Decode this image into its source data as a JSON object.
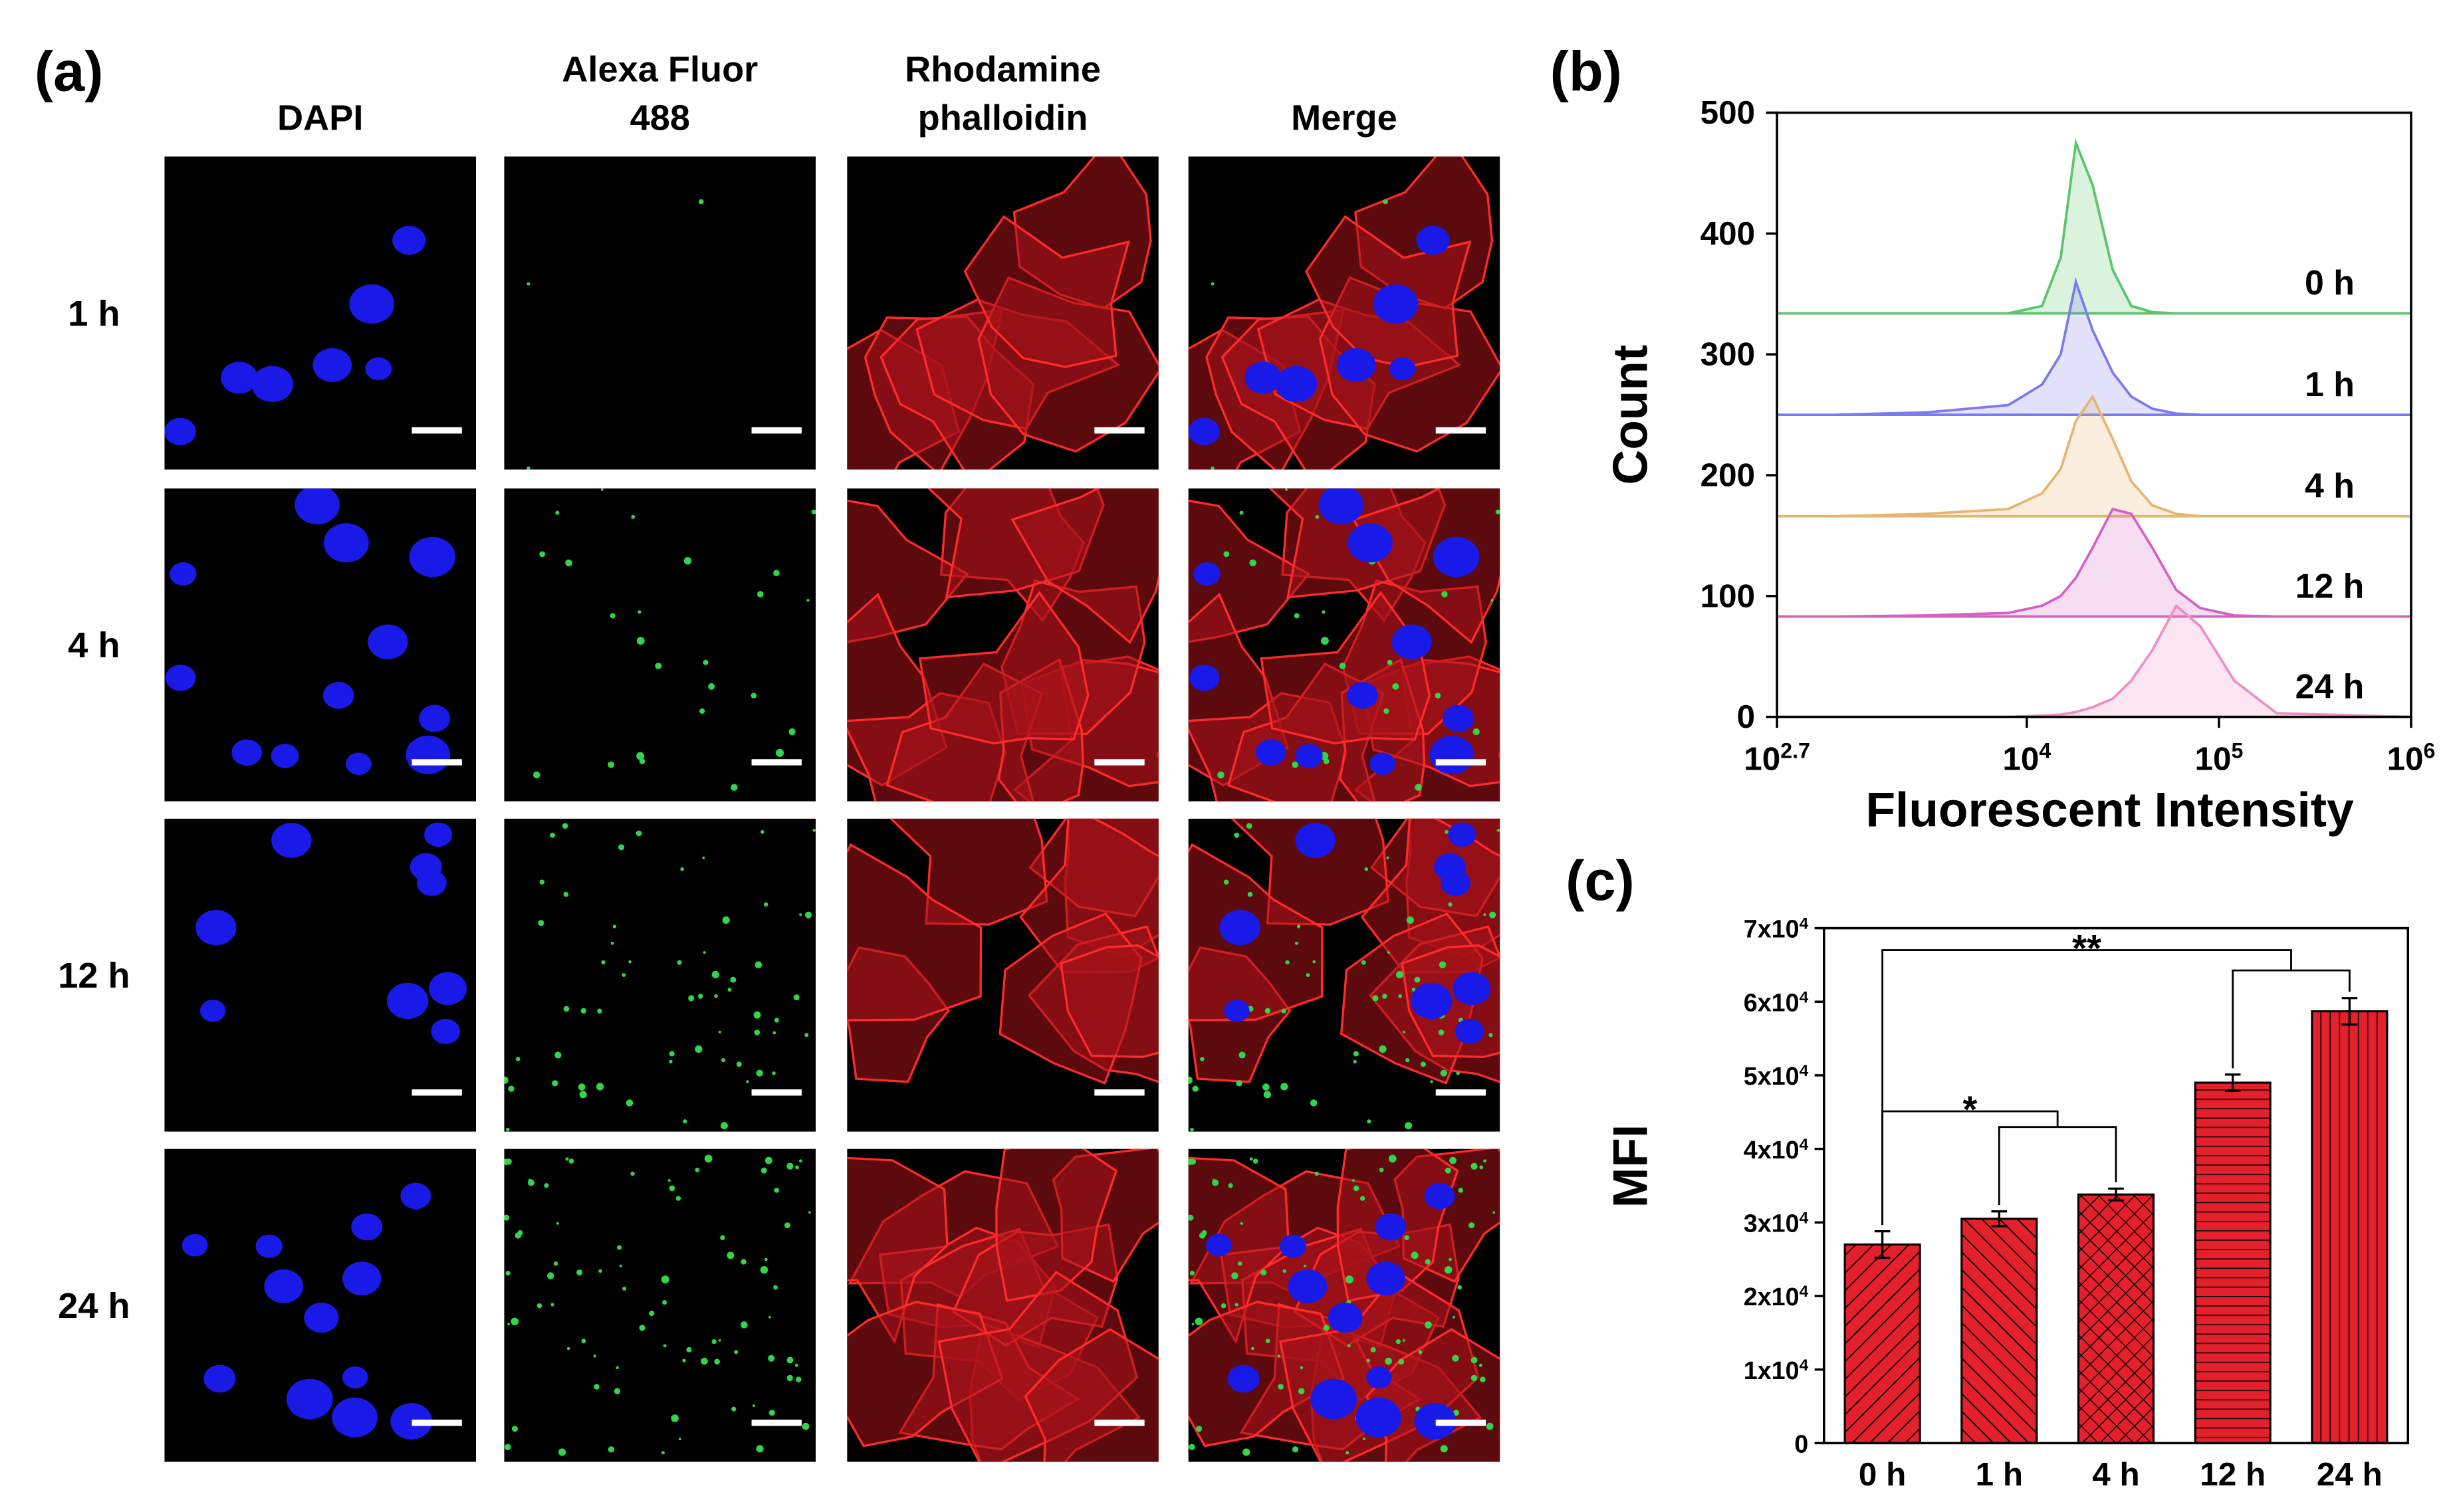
{
  "panel_labels": [
    "(a)",
    "(b)",
    "(c)"
  ],
  "panel_a": {
    "column_headers": [
      [
        "DAPI"
      ],
      [
        "Alexa Fluor",
        "488"
      ],
      [
        "Rhodamine",
        "phalloidin"
      ],
      [
        "Merge"
      ]
    ],
    "row_labels": [
      "1 h",
      "4 h",
      "12 h",
      "24 h"
    ]
  },
  "chart_data": [
    {
      "type": "area",
      "x_label": "Fluorescent Intensity",
      "y_label": "Count",
      "log_x": true,
      "x": [
        501.187,
        1000,
        3000,
        8000,
        12000,
        15000,
        18000,
        22000,
        28000,
        35000,
        45000,
        60000,
        80000,
        120000,
        200000,
        1000000
      ],
      "xlim": [
        501.187,
        1000000
      ],
      "xticks": [
        {
          "value": 501.187,
          "label": "10^2.7"
        },
        {
          "value": 10000,
          "label": "10^4"
        },
        {
          "value": 100000,
          "label": "10^5"
        },
        {
          "value": 1000000,
          "label": "10^6"
        }
      ],
      "ylim": [
        0,
        500
      ],
      "yticks": [
        0,
        100,
        200,
        300,
        400,
        500
      ],
      "series": [
        {
          "name": "0 h",
          "color": "#5cc46b",
          "values": [
            334,
            334,
            334,
            334,
            340,
            380,
            475,
            440,
            370,
            340,
            335,
            334,
            334,
            334,
            334,
            334
          ]
        },
        {
          "name": "1 h",
          "color": "#7b7bf0",
          "values": [
            250,
            250,
            252,
            258,
            275,
            300,
            360,
            320,
            285,
            265,
            255,
            251,
            250,
            250,
            250,
            250
          ]
        },
        {
          "name": "4 h",
          "color": "#e8b56f",
          "values": [
            166,
            166,
            168,
            172,
            185,
            205,
            245,
            265,
            230,
            195,
            175,
            168,
            166,
            166,
            166,
            166
          ]
        },
        {
          "name": "12 h",
          "color": "#d462c3",
          "values": [
            83,
            83,
            84,
            86,
            92,
            100,
            115,
            140,
            172,
            168,
            140,
            105,
            90,
            84,
            83,
            83
          ]
        },
        {
          "name": "24 h",
          "color": "#f08ec4",
          "values": [
            0,
            0,
            0,
            0,
            1,
            2,
            4,
            8,
            15,
            30,
            55,
            92,
            75,
            30,
            3,
            0
          ]
        }
      ]
    },
    {
      "type": "bar",
      "y_label": "MFI",
      "categories": [
        "0 h",
        "1 h",
        "4 h",
        "12 h",
        "24 h"
      ],
      "values": [
        27000,
        30500,
        33800,
        49000,
        58700
      ],
      "errors": [
        1800,
        1000,
        800,
        1100,
        1800
      ],
      "color": "#e3202b",
      "ylim": [
        0,
        70000
      ],
      "yticks": [
        0,
        {
          "value": 10000,
          "label": "1x10^4"
        },
        {
          "value": 20000,
          "label": "2x10^4"
        },
        {
          "value": 30000,
          "label": "3x10^4"
        },
        {
          "value": 40000,
          "label": "4x10^4"
        },
        {
          "value": 50000,
          "label": "5x10^4"
        },
        {
          "value": 60000,
          "label": "6x10^4"
        },
        {
          "value": 70000,
          "label": "7x10^4"
        }
      ],
      "annotations": [
        "**",
        "*"
      ]
    }
  ]
}
